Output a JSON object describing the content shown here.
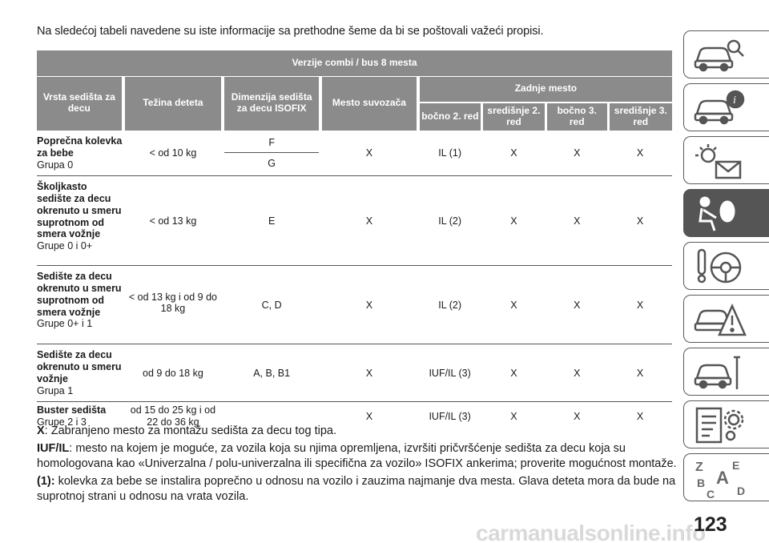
{
  "intro": "Na sledećoj tabeli navedene su iste informacije sa prethodne šeme da bi se poštovali važeći propisi.",
  "table": {
    "title": "Verzije combi / bus 8 mesta",
    "headers": {
      "vrsta": "Vrsta sedišta za decu",
      "tezina": "Težina deteta",
      "dimenzija": "Dimenzija sedišta za decu ISOFIX",
      "mesto": "Mesto suvozača",
      "zadnje": "Zadnje mesto",
      "sub": [
        "bočno 2. red",
        "središnje 2. red",
        "bočno 3. red",
        "središnje 3. red"
      ]
    },
    "rows": [
      {
        "label": "Poprečna kolevka za bebe",
        "group": "Grupa 0",
        "weight": "< od 10 kg",
        "sizes": [
          "F",
          "G"
        ],
        "mesto": "X",
        "c1": "IL (1)",
        "c2": "X",
        "c3": "X",
        "c4": "X"
      },
      {
        "label": "Školjkasto sedište za decu okrenuto u smeru suprotnom od smera vožnje",
        "group": "Grupe 0 i 0+",
        "weight": "< od 13 kg",
        "size": "E",
        "mesto": "X",
        "c1": "IL (2)",
        "c2": "X",
        "c3": "X",
        "c4": "X"
      },
      {
        "label": "Sedište za decu okrenuto u smeru suprotnom od smera vožnje",
        "group": "Grupe 0+ i 1",
        "weight": "< od 13 kg i od 9 do 18 kg",
        "size": "C, D",
        "mesto": "X",
        "c1": "IL (2)",
        "c2": "X",
        "c3": "X",
        "c4": "X"
      },
      {
        "label": "Sedište za decu okrenuto u smeru vožnje",
        "group": "Grupa 1",
        "weight": "od 9 do 18 kg",
        "size": "A, B, B1",
        "mesto": "X",
        "c1": "IUF/IL (3)",
        "c2": "X",
        "c3": "X",
        "c4": "X"
      },
      {
        "label": "Buster sedišta",
        "group": "Grupe 2 i 3",
        "weight": "od 15 do 25 kg i od 22 do 36 kg",
        "size": "",
        "mesto": "X",
        "c1": "IUF/IL (3)",
        "c2": "X",
        "c3": "X",
        "c4": "X"
      }
    ]
  },
  "notes": {
    "n1_key": "X",
    "n1_text": ": Zabranjeno mesto za montažu sedišta za decu tog tipa.",
    "n2_key": "IUF/IL",
    "n2_text": ": mesto na kojem je moguće, za vozila koja su njima opremljena, izvršiti pričvršćenje sedišta za decu koja su homologovana kao «Univerzalna / polu-univerzalna ili specifična za vozilo» ISOFIX ankerima; proverite mogućnost montaže.",
    "n3_key": "(1):",
    "n3_text": "kolevka za bebe se instalira poprečno u odnosu na vozilo i zauzima najmanje dva mesta. Glava deteta mora da bude na suprotnoj strani u odnosu na vrata vozila."
  },
  "tabs": [
    {
      "icon": "car-search-icon",
      "active": false
    },
    {
      "icon": "car-info-icon",
      "active": false
    },
    {
      "icon": "light-message-icon",
      "active": false
    },
    {
      "icon": "seat-airbag-icon",
      "active": true
    },
    {
      "icon": "steering-key-icon",
      "active": false
    },
    {
      "icon": "car-warning-icon",
      "active": false
    },
    {
      "icon": "car-tools-icon",
      "active": false
    },
    {
      "icon": "checklist-gear-icon",
      "active": false
    },
    {
      "icon": "alphabet-index-icon",
      "active": false
    }
  ],
  "tab_letters": [
    "Z",
    "E",
    "A",
    "B",
    "C",
    "D"
  ],
  "page_number": "123",
  "watermark": "carmanualsonline.info",
  "colors": {
    "header_bg": "#8b8b8b",
    "tab_active": "#555555",
    "tab_border": "#5a5a5a"
  }
}
